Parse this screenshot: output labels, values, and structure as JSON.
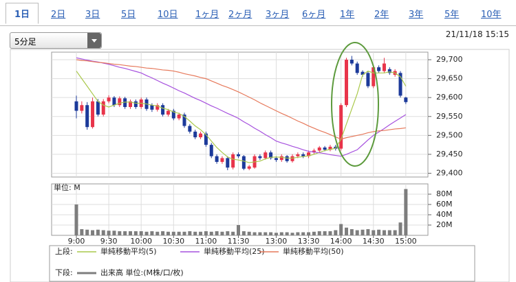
{
  "tabs": [
    "1日",
    "2日",
    "3日",
    "5日",
    "10日",
    "1ヶ月",
    "2ヶ月",
    "3ヶ月",
    "6ヶ月",
    "1年",
    "2年",
    "3年",
    "5年",
    "10年"
  ],
  "dropdown": "5分足",
  "timestamp": "21/11/18 15:15",
  "chart_data": [
    {
      "type": "candlestick",
      "legend_label": "上段:",
      "up_color": "#e8344a",
      "down_color": "#1c3a9a",
      "open": [
        29590,
        29565,
        29580,
        29522,
        29590,
        29555,
        29590,
        29600,
        29580,
        29598,
        29575,
        29590,
        29575,
        29595,
        29580,
        29568,
        29580,
        29555,
        29565,
        29545,
        29555,
        29525,
        29510,
        29495,
        29505,
        29475,
        29445,
        29430,
        29440,
        29415,
        29450,
        29445,
        29412,
        29415,
        29445,
        29440,
        29455,
        29440,
        29435,
        29445,
        29432,
        29445,
        29450,
        29445,
        29455,
        29460,
        29468,
        29462,
        29470,
        29465,
        29580,
        29700,
        29690,
        29668,
        29665,
        29630,
        29680,
        29670,
        29675,
        29660,
        29665,
        29600
      ],
      "high": [
        29605,
        29590,
        29588,
        29600,
        29596,
        29596,
        29606,
        29604,
        29603,
        29602,
        29595,
        29595,
        29600,
        29600,
        29585,
        29585,
        29585,
        29570,
        29570,
        29560,
        29560,
        29530,
        29515,
        29510,
        29510,
        29480,
        29450,
        29445,
        29445,
        29455,
        29455,
        29448,
        29422,
        29450,
        29450,
        29460,
        29460,
        29445,
        29450,
        29448,
        29450,
        29455,
        29455,
        29460,
        29465,
        29472,
        29472,
        29475,
        29475,
        29585,
        29705,
        29710,
        29695,
        29672,
        29670,
        29685,
        29685,
        29705,
        29680,
        29675,
        29670,
        29602
      ],
      "low": [
        29545,
        29558,
        29515,
        29518,
        29550,
        29550,
        29585,
        29575,
        29575,
        29570,
        29570,
        29570,
        29570,
        29565,
        29562,
        29563,
        29550,
        29550,
        29540,
        29540,
        29520,
        29505,
        29490,
        29490,
        29470,
        29440,
        29425,
        29425,
        29408,
        29410,
        29440,
        29408,
        29408,
        29412,
        29435,
        29436,
        29436,
        29430,
        29430,
        29428,
        29428,
        29440,
        29440,
        29440,
        29450,
        29455,
        29458,
        29458,
        29460,
        29460,
        29575,
        29685,
        29660,
        29655,
        29625,
        29625,
        29665,
        29665,
        29660,
        29655,
        29600,
        29583
      ],
      "close": [
        29565,
        29580,
        29522,
        29590,
        29555,
        29590,
        29600,
        29580,
        29598,
        29575,
        29590,
        29575,
        29595,
        29570,
        29568,
        29580,
        29555,
        29565,
        29545,
        29555,
        29525,
        29510,
        29495,
        29505,
        29475,
        29445,
        29430,
        29440,
        29415,
        29450,
        29445,
        29412,
        29418,
        29445,
        29440,
        29455,
        29440,
        29435,
        29445,
        29432,
        29445,
        29450,
        29445,
        29455,
        29460,
        29468,
        29462,
        29470,
        29465,
        29580,
        29700,
        29690,
        29665,
        29660,
        29630,
        29680,
        29670,
        29690,
        29665,
        29670,
        29605,
        29588
      ],
      "series": [
        {
          "name": "単純移動平均(5)",
          "color": "#a9c84a",
          "values": [
            29670,
            29650,
            29630,
            29610,
            29590,
            29580,
            29575,
            29580,
            29585,
            29588,
            29588,
            29585,
            29585,
            29583,
            29580,
            29578,
            29572,
            29568,
            29562,
            29558,
            29550,
            29538,
            29525,
            29515,
            29502,
            29485,
            29468,
            29455,
            29443,
            29437,
            29435,
            29432,
            29428,
            29430,
            29432,
            29438,
            29442,
            29443,
            29442,
            29440,
            29440,
            29442,
            29444,
            29446,
            29450,
            29455,
            29460,
            29463,
            29466,
            29490,
            29530,
            29570,
            29610,
            29660,
            29670,
            29665,
            29665,
            29665,
            29668,
            29665,
            29655,
            29630
          ]
        },
        {
          "name": "単純移動平均(25)",
          "color": "#a650de",
          "values": [
            29705,
            29702,
            29699,
            29696,
            29694,
            29691,
            29688,
            29684,
            29680,
            29677,
            29673,
            29669,
            29665,
            29658,
            29652,
            29645,
            29638,
            29632,
            29625,
            29618,
            29612,
            29605,
            29598,
            29592,
            29585,
            29578,
            29572,
            29565,
            29558,
            29552,
            29545,
            29536,
            29528,
            29519,
            29511,
            29502,
            29494,
            29485,
            29480,
            29476,
            29471,
            29467,
            29462,
            29458,
            29456,
            29454,
            29452,
            29449,
            29447,
            29445,
            29450,
            29456,
            29462,
            29475,
            29488,
            29500,
            29509,
            29518,
            29528,
            29537,
            29546,
            29555
          ]
        },
        {
          "name": "単純移動平均(50)",
          "color": "#e6785a",
          "values": [
            29700,
            29698,
            29697,
            29695,
            29693,
            29692,
            29690,
            29688,
            29687,
            29685,
            29683,
            29682,
            29680,
            29678,
            29677,
            29675,
            29673,
            29672,
            29670,
            29667,
            29663,
            29660,
            29657,
            29653,
            29650,
            29644,
            29638,
            29632,
            29627,
            29621,
            29615,
            29608,
            29601,
            29594,
            29586,
            29579,
            29572,
            29565,
            29558,
            29552,
            29545,
            29538,
            29532,
            29525,
            29519,
            29513,
            29508,
            29502,
            29496,
            29490,
            29494,
            29497,
            29500,
            29503,
            29507,
            29510,
            29512,
            29513,
            29515,
            29517,
            29518,
            29520
          ]
        }
      ],
      "ylim": [
        29390,
        29720
      ],
      "yticks": [
        {
          "value": 29400,
          "label": "29,400"
        },
        {
          "value": 29450,
          "label": "29,450"
        },
        {
          "value": 29500,
          "label": "29,500"
        },
        {
          "value": 29550,
          "label": "29,550"
        },
        {
          "value": 29600,
          "label": "29,600"
        },
        {
          "value": 29650,
          "label": "29,650"
        },
        {
          "value": 29700,
          "label": "29,700"
        }
      ],
      "grid": true
    },
    {
      "type": "bar",
      "legend_label": "下段:",
      "unit_label": "単位: M",
      "categories": [
        "9:00",
        null,
        null,
        null,
        null,
        null,
        "9:30",
        null,
        null,
        null,
        null,
        null,
        "10:00",
        null,
        null,
        null,
        null,
        null,
        "10:30",
        null,
        null,
        null,
        null,
        null,
        "11:00",
        null,
        null,
        null,
        null,
        null,
        "11:30",
        null,
        null,
        null,
        null,
        null,
        null,
        "13:00",
        null,
        null,
        null,
        null,
        null,
        "13:30",
        null,
        null,
        null,
        null,
        null,
        "14:00",
        null,
        null,
        null,
        null,
        null,
        "14:30",
        null,
        null,
        null,
        null,
        null,
        "15:00"
      ],
      "series": [
        {
          "name": "出来高 単位:(M株/口/枚)",
          "color": "#7d7d7d",
          "values": [
            60,
            12,
            11,
            10,
            11,
            10,
            9,
            9,
            8,
            8,
            8,
            8,
            8,
            7,
            8,
            7,
            8,
            7,
            7,
            7,
            7,
            8,
            7,
            7,
            8,
            7,
            8,
            7,
            8,
            7,
            20,
            8,
            7,
            6,
            6,
            6,
            6,
            5,
            6,
            6,
            5,
            6,
            6,
            6,
            7,
            8,
            8,
            8,
            10,
            22,
            15,
            12,
            10,
            11,
            12,
            10,
            11,
            10,
            10,
            10,
            25,
            90
          ]
        }
      ],
      "ylim": [
        0,
        100
      ],
      "yticks": [
        {
          "value": 20,
          "label": "20M"
        },
        {
          "value": 40,
          "label": "40M"
        },
        {
          "value": 60,
          "label": "60M"
        },
        {
          "value": 80,
          "label": "80M"
        }
      ],
      "grid": true
    }
  ]
}
